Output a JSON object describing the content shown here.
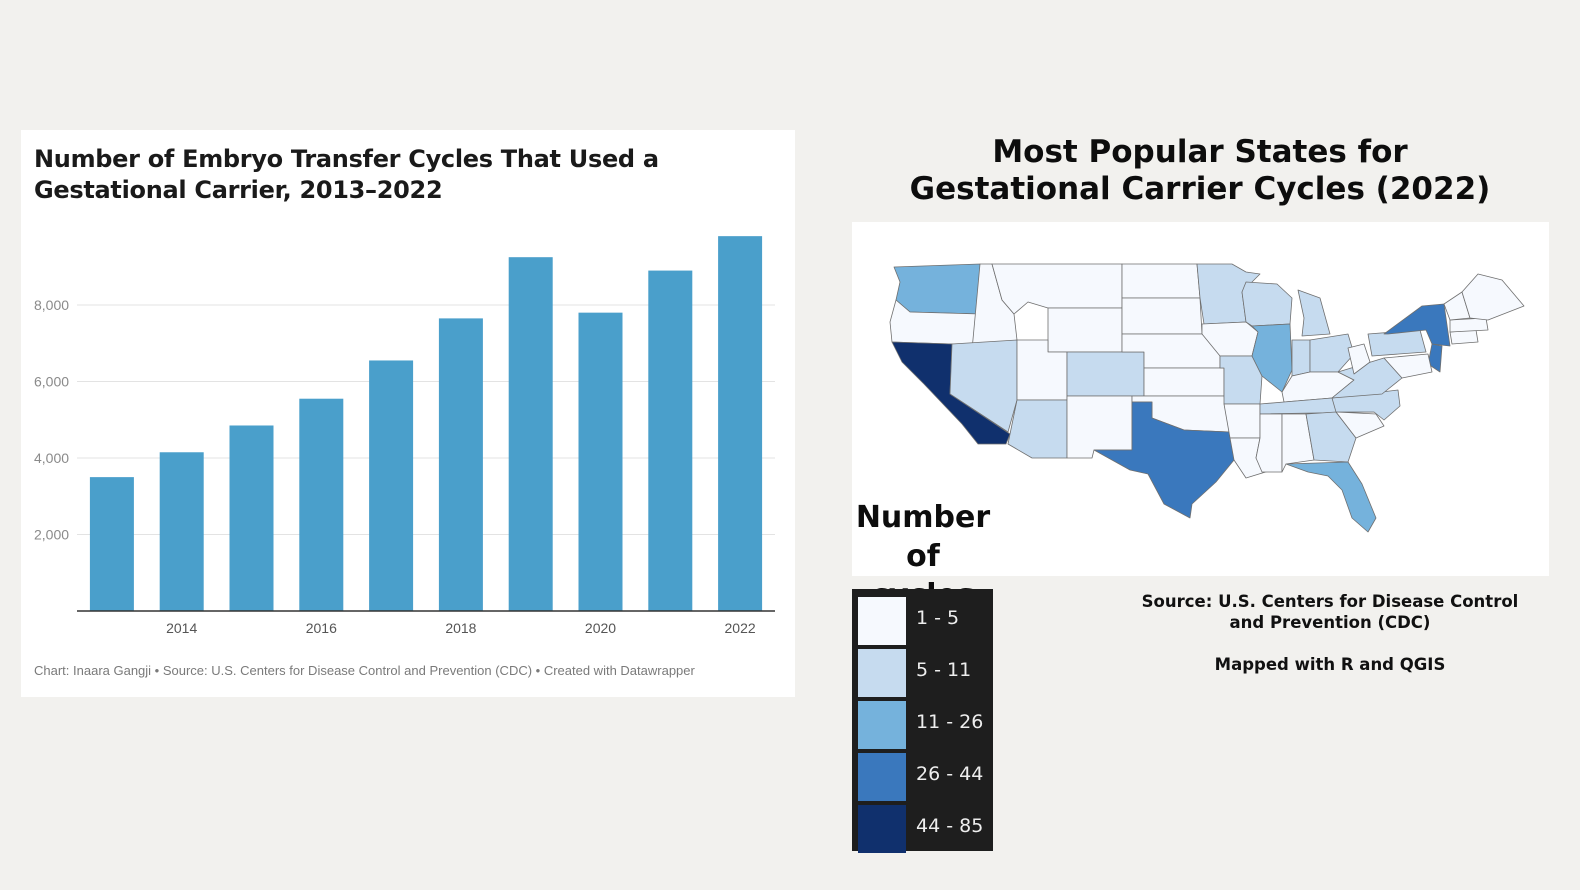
{
  "chart_data": [
    {
      "type": "bar",
      "title": "Number of Embryo Transfer Cycles That Used a Gestational Carrier, 2013–2022",
      "categories": [
        "2013",
        "2014",
        "2015",
        "2016",
        "2017",
        "2018",
        "2019",
        "2020",
        "2021",
        "2022"
      ],
      "values": [
        3500,
        4150,
        4850,
        5550,
        6550,
        7650,
        9250,
        7800,
        8900,
        9800
      ],
      "x_tick_labels": [
        "2014",
        "2016",
        "2018",
        "2020",
        "2022"
      ],
      "y_tick_labels": [
        "2,000",
        "4,000",
        "6,000",
        "8,000"
      ],
      "y_ticks": [
        2000,
        4000,
        6000,
        8000
      ],
      "ylim": [
        0,
        10000
      ],
      "xlabel": "",
      "ylabel": "",
      "grid": true,
      "bar_color": "#4a9fcb",
      "footer": "Chart: Inaara Gangji • Source: U.S. Centers for Disease Control and Prevention (CDC) • Created with Datawrapper"
    },
    {
      "type": "choropleth",
      "title": "Most Popular States for Gestational Carrier Cycles (2022)",
      "legend_title": "Number of cycles",
      "legend": [
        {
          "label": "1 - 5",
          "color": "#f6f9fe"
        },
        {
          "label": "5 - 11",
          "color": "#c6dbef"
        },
        {
          "label": "11 - 26",
          "color": "#75b2dc"
        },
        {
          "label": "26 - 44",
          "color": "#3a78bd"
        },
        {
          "label": "44 - 85",
          "color": "#10306d"
        }
      ],
      "highlighted_states": [
        {
          "state": "California",
          "bin": 4
        },
        {
          "state": "Texas",
          "bin": 3
        },
        {
          "state": "New York",
          "bin": 3
        },
        {
          "state": "Illinois",
          "bin": 2
        },
        {
          "state": "Washington",
          "bin": 2
        },
        {
          "state": "Florida",
          "bin": 2
        }
      ],
      "source": "Source: U.S. Centers for Disease Control and Prevention (CDC)",
      "mapped_with": "Mapped with R  and QGIS"
    }
  ]
}
